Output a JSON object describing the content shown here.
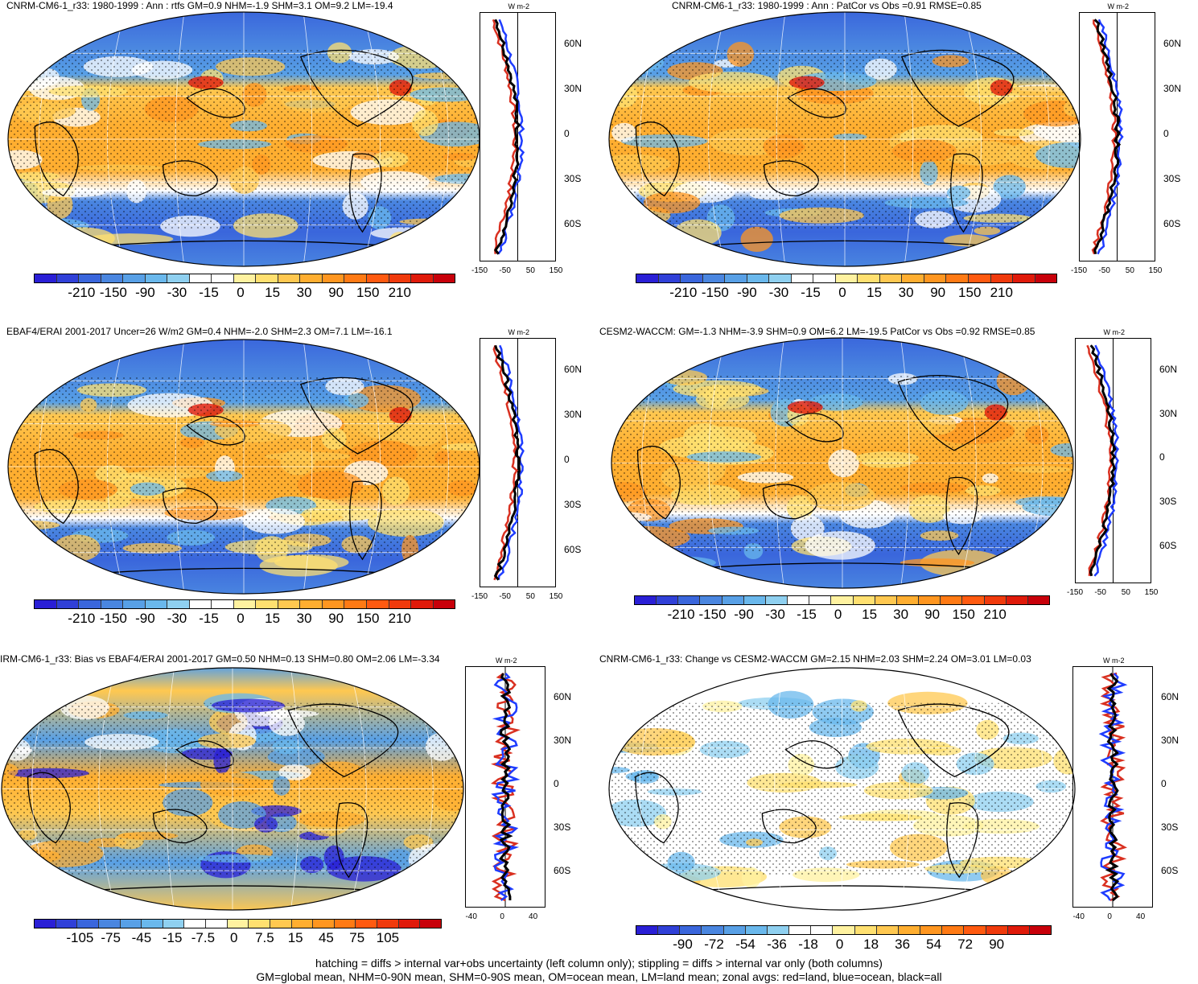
{
  "panels": [
    {
      "title": "CNRM-CM6-1_r33: 1980-1999 : Ann : rtfs GM=0.9 NHM=-1.9 SHM=3.1 OM=9.2 LM=-19.4",
      "colorbar": [
        "-210",
        "-150",
        "-90",
        "-30",
        "-15",
        "0",
        "15",
        "30",
        "90",
        "150",
        "210"
      ],
      "zonal_xticks": [
        "-150",
        "-50",
        "50",
        "150"
      ],
      "zonal_unit": "W m-2"
    },
    {
      "title": "CNRM-CM6-1_r33: 1980-1999 : Ann : PatCor vs Obs =0.91 RMSE=0.85",
      "colorbar": [
        "-210",
        "-150",
        "-90",
        "-30",
        "-15",
        "0",
        "15",
        "30",
        "90",
        "150",
        "210"
      ],
      "zonal_xticks": [
        "-150",
        "-50",
        "50",
        "150"
      ],
      "zonal_unit": "W m-2"
    },
    {
      "title": "EBAF4/ERAI 2001-2017 Uncer=26 W/m2 GM=0.4 NHM=-2.0 SHM=2.3 OM=7.1 LM=-16.1",
      "colorbar": [
        "-210",
        "-150",
        "-90",
        "-30",
        "-15",
        "0",
        "15",
        "30",
        "90",
        "150",
        "210"
      ],
      "zonal_xticks": [
        "-150",
        "-50",
        "50",
        "150"
      ],
      "zonal_unit": "W m-2"
    },
    {
      "title": "CESM2-WACCM: GM=-1.3 NHM=-3.9 SHM=0.9 OM=6.2 LM=-19.5 PatCor vs Obs =0.92 RMSE=0.85",
      "colorbar": [
        "-210",
        "-150",
        "-90",
        "-30",
        "-15",
        "0",
        "15",
        "30",
        "90",
        "150",
        "210"
      ],
      "zonal_xticks": [
        "-150",
        "-50",
        "50",
        "150"
      ],
      "zonal_unit": "W m-2"
    },
    {
      "title": "IRM-CM6-1_r33: Bias vs EBAF4/ERAI 2001-2017 GM=0.50 NHM=0.13 SHM=0.80 OM=2.06 LM=-3.34",
      "colorbar": [
        "-105",
        "-75",
        "-45",
        "-15",
        "-7.5",
        "0",
        "7.5",
        "15",
        "45",
        "75",
        "105"
      ],
      "zonal_xticks": [
        "-40",
        "0",
        "40"
      ],
      "zonal_unit": "W m-2"
    },
    {
      "title": "CNRM-CM6-1_r33: Change vs CESM2-WACCM GM=2.15 NHM=2.03 SHM=2.24 OM=3.01 LM=0.03",
      "colorbar": [
        "-90",
        "-72",
        "-54",
        "-36",
        "-18",
        "0",
        "18",
        "36",
        "54",
        "72",
        "90"
      ],
      "zonal_xticks": [
        "-40",
        "0",
        "40"
      ],
      "zonal_unit": "W m-2"
    }
  ],
  "lat_labels": [
    "60N",
    "30N",
    "0",
    "30S",
    "60S"
  ],
  "colors": {
    "cb": [
      "#2a1fd6",
      "#3040d8",
      "#3a66dc",
      "#4a86e0",
      "#58a0e6",
      "#6ab8ec",
      "#8fd0f0",
      "#ffffff",
      "#ffffff",
      "#fff2a0",
      "#ffe070",
      "#ffc850",
      "#ffae30",
      "#ff9620",
      "#ff7a14",
      "#ff5a10",
      "#f03a0c",
      "#e01a0a",
      "#c8000a"
    ],
    "land": "#d93020",
    "ocean": "#1e3cff",
    "all": "#000000"
  },
  "footer": [
    "hatching = diffs > internal var+obs uncertainty (left column only); stippling = diffs > internal var only (both columns)",
    "GM=global mean, NHM=0-90N mean, SHM=0-90S mean, OM=ocean mean, LM=land mean; zonal avgs: red=land, blue=ocean, black=all"
  ]
}
